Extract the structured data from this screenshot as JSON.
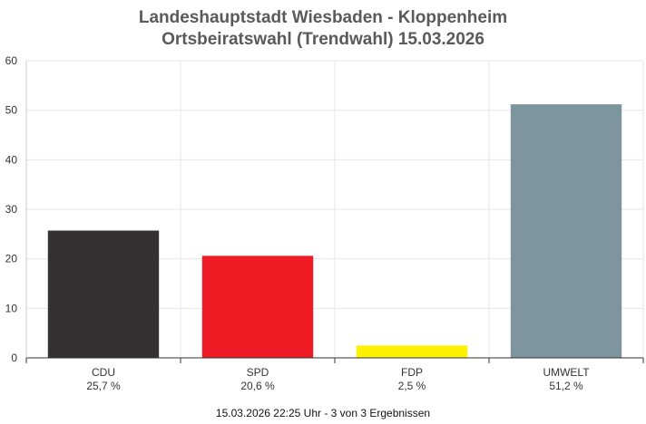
{
  "chart_data": {
    "type": "bar",
    "title": "Landeshauptstadt Wiesbaden - Kloppenheim",
    "subtitle": "Ortsbeiratswahl (Trendwahl) 15.03.2026",
    "categories": [
      "CDU",
      "SPD",
      "FDP",
      "UMWELT"
    ],
    "values": [
      25.7,
      20.6,
      2.5,
      51.2
    ],
    "value_labels": [
      "25,7 %",
      "20,6 %",
      "2,5 %",
      "51,2 %"
    ],
    "colors": [
      "#333132",
      "#ef1c25",
      "#fff200",
      "#7d959f"
    ],
    "ylim": [
      0,
      60
    ],
    "yticks": [
      0,
      10,
      20,
      30,
      40,
      50,
      60
    ],
    "grid": true,
    "xlabel": "",
    "ylabel": ""
  },
  "footer": "15.03.2026 22:25 Uhr - 3 von 3 Ergebnissen"
}
